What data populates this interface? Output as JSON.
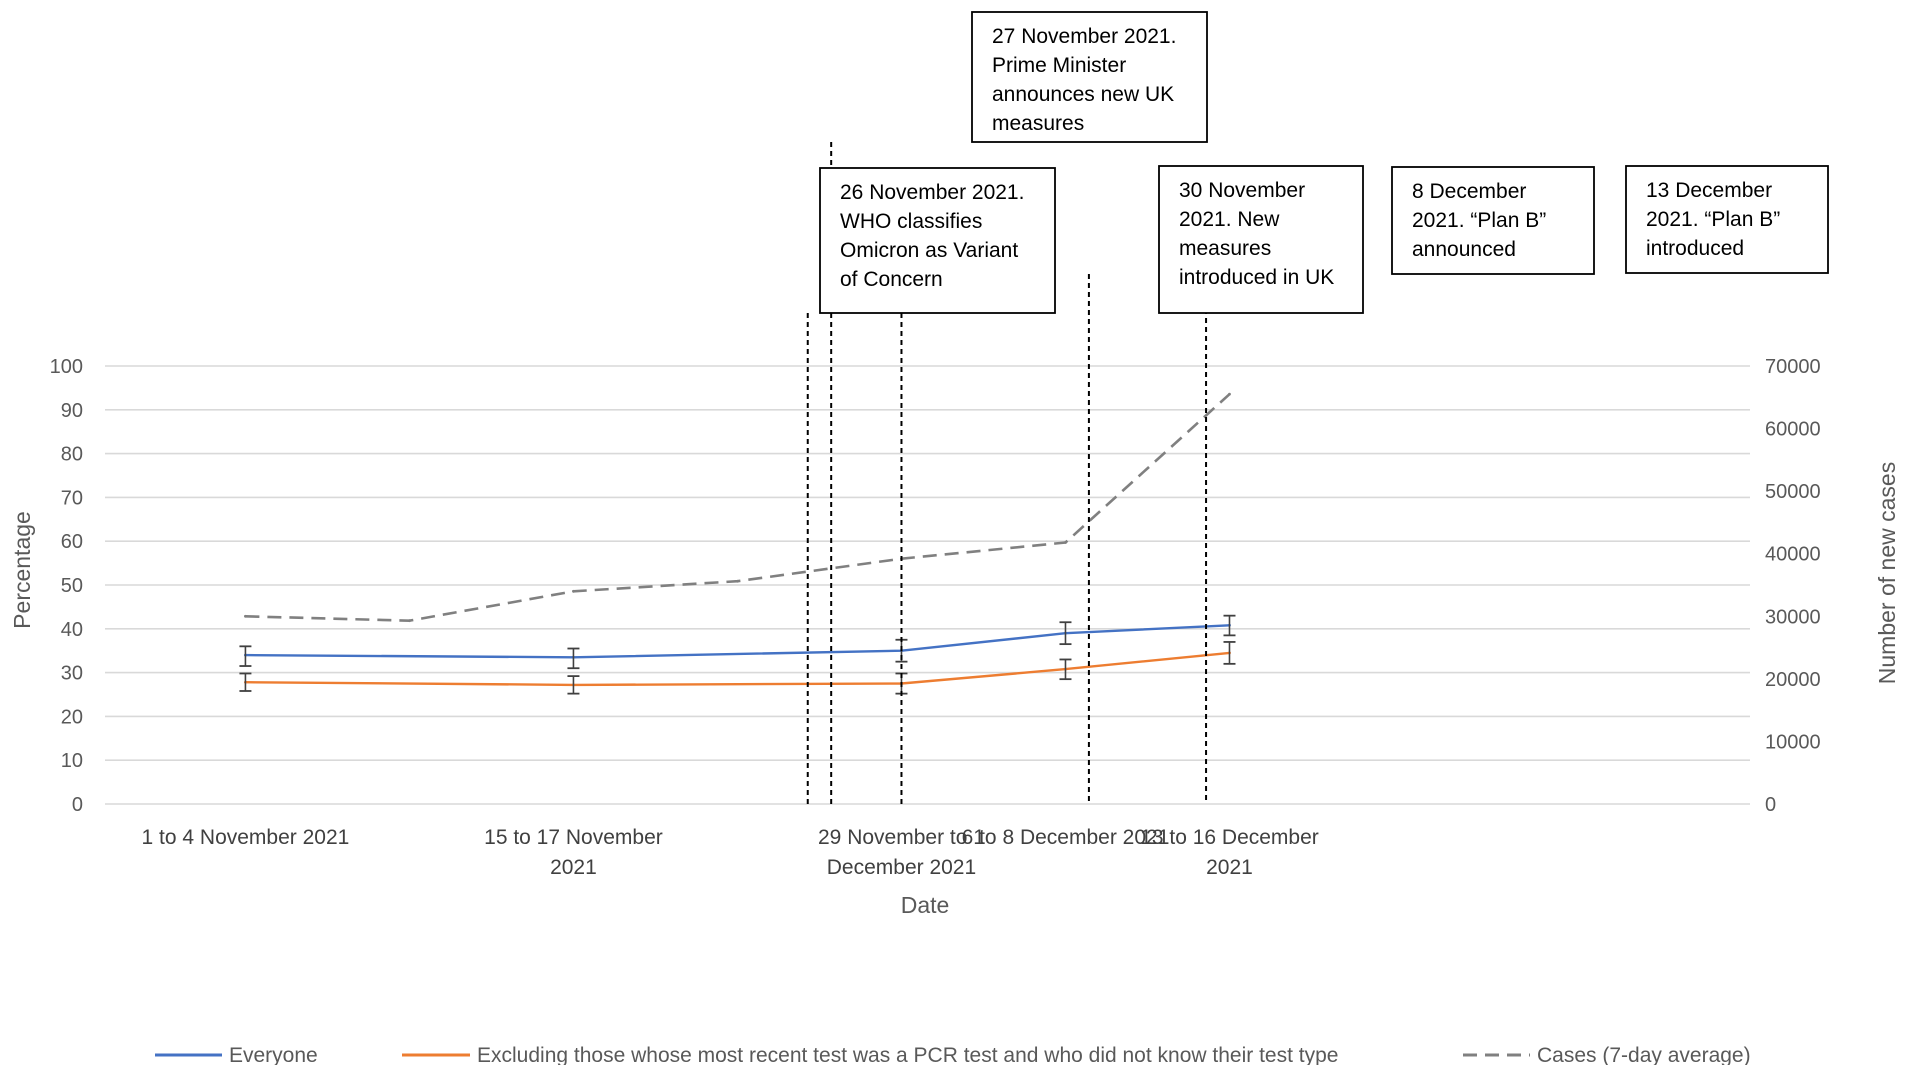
{
  "chart_data": {
    "type": "line",
    "xlabel": "Date",
    "ylabel": "Percentage",
    "y2label": "Number of new cases",
    "ylim": [
      0,
      100
    ],
    "y2lim": [
      0,
      70000
    ],
    "yticks": [
      0,
      10,
      20,
      30,
      40,
      50,
      60,
      70,
      80,
      90,
      100
    ],
    "y2ticks": [
      0,
      10000,
      20000,
      30000,
      40000,
      50000,
      60000,
      70000
    ],
    "grid": true,
    "legend_position": "bottom",
    "x_axis": {
      "start": "1 November 2021",
      "end": "16 December 2021",
      "category_labels": [
        {
          "lines": [
            "1 to 4 November 2021"
          ],
          "date": "2021-11-02"
        },
        {
          "lines": [
            "15 to 17 November",
            "2021"
          ],
          "date": "2021-11-16"
        },
        {
          "lines": [
            "29 November to 1",
            "December 2021"
          ],
          "date": "2021-11-30"
        },
        {
          "lines": [
            "6 to 8 December 2021"
          ],
          "date": "2021-12-07"
        },
        {
          "lines": [
            "13 to 16 December",
            "2021"
          ],
          "date": "2021-12-14"
        }
      ]
    },
    "series": [
      {
        "name": "Everyone",
        "color": "#4472C4",
        "axis": "left",
        "style": "solid",
        "points": [
          {
            "date": "2021-11-02",
            "value": 34.0,
            "lower": 31.5,
            "upper": 36.0
          },
          {
            "date": "2021-11-16",
            "value": 33.5,
            "lower": 31.0,
            "upper": 35.5
          },
          {
            "date": "2021-11-30",
            "value": 35.0,
            "lower": 32.5,
            "upper": 37.5
          },
          {
            "date": "2021-12-07",
            "value": 39.0,
            "lower": 36.5,
            "upper": 41.5
          },
          {
            "date": "2021-12-14",
            "value": 40.8,
            "lower": 38.5,
            "upper": 43.0
          }
        ]
      },
      {
        "name": "Excluding those whose most recent test was a PCR test and who did not know their test type",
        "color": "#ED7D31",
        "axis": "left",
        "style": "solid",
        "points": [
          {
            "date": "2021-11-02",
            "value": 27.8,
            "lower": 25.8,
            "upper": 29.8
          },
          {
            "date": "2021-11-16",
            "value": 27.2,
            "lower": 25.2,
            "upper": 29.2
          },
          {
            "date": "2021-11-30",
            "value": 27.5,
            "lower": 25.2,
            "upper": 29.8
          },
          {
            "date": "2021-12-07",
            "value": 30.8,
            "lower": 28.5,
            "upper": 33.0
          },
          {
            "date": "2021-12-14",
            "value": 34.5,
            "lower": 32.0,
            "upper": 37.0
          }
        ]
      },
      {
        "name": "Cases (7-day average)",
        "color": "#808080",
        "axis": "right",
        "style": "dashed",
        "points": [
          {
            "date": "2021-11-02",
            "value": 30000
          },
          {
            "date": "2021-11-09",
            "value": 29300
          },
          {
            "date": "2021-11-16",
            "value": 34000
          },
          {
            "date": "2021-11-23",
            "value": 35600
          },
          {
            "date": "2021-11-30",
            "value": 39200
          },
          {
            "date": "2021-12-07",
            "value": 41800
          },
          {
            "date": "2021-12-14",
            "value": 65500
          }
        ]
      }
    ],
    "annotations": [
      {
        "date": "2021-11-26",
        "lines": [
          "26 November 2021.",
          "WHO classifies",
          "Omicron as Variant",
          "of Concern"
        ]
      },
      {
        "date": "2021-11-27",
        "lines": [
          "27 November 2021.",
          "Prime Minister",
          "announces new UK",
          "measures"
        ]
      },
      {
        "date": "2021-11-30",
        "lines": [
          "30 November",
          "2021. New",
          "measures",
          "introduced in UK"
        ]
      },
      {
        "date": "2021-12-08",
        "lines": [
          "8 December",
          "2021. “Plan B”",
          "announced"
        ]
      },
      {
        "date": "2021-12-13",
        "lines": [
          "13 December",
          "2021. “Plan B”",
          "introduced"
        ]
      }
    ]
  }
}
